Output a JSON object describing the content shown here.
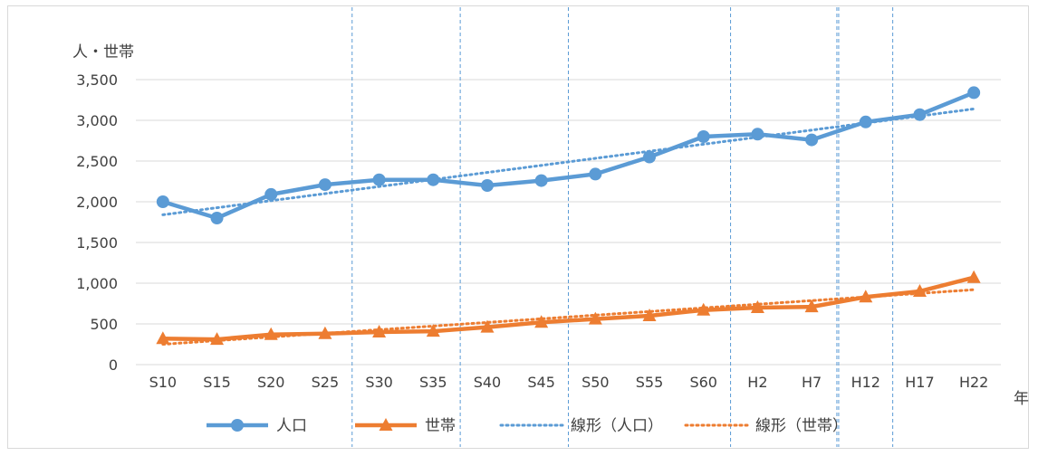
{
  "chart_data": {
    "type": "line",
    "y_axis_title": "人・世帯",
    "x_axis_title": "年",
    "categories": [
      "S10",
      "S15",
      "S20",
      "S25",
      "S30",
      "S35",
      "S40",
      "S45",
      "S50",
      "S55",
      "S60",
      "H2",
      "H7",
      "H12",
      "H17",
      "H22"
    ],
    "ylim": [
      0,
      3500
    ],
    "y_ticks": [
      0,
      500,
      1000,
      1500,
      2000,
      2500,
      3000,
      3500
    ],
    "y_tick_labels": [
      "0",
      "500",
      "1,000",
      "1,500",
      "2,000",
      "2,500",
      "3,000",
      "3,500"
    ],
    "grid": "horizontal",
    "legend_position": "bottom",
    "series": [
      {
        "name": "人口",
        "color": "#5b9bd5",
        "marker": "circle",
        "values": [
          2000,
          1800,
          2090,
          2210,
          2270,
          2270,
          2200,
          2260,
          2340,
          2550,
          2800,
          2830,
          2760,
          2980,
          3070,
          3340
        ]
      },
      {
        "name": "世帯",
        "color": "#ed7d31",
        "marker": "triangle",
        "values": [
          320,
          310,
          370,
          380,
          400,
          410,
          460,
          520,
          560,
          600,
          670,
          700,
          710,
          830,
          900,
          1070
        ]
      }
    ],
    "trendlines": [
      {
        "name": "線形（人口）",
        "color": "#5b9bd5",
        "style": "dotted",
        "start": 1840,
        "end": 3140
      },
      {
        "name": "線形（世帯）",
        "color": "#ed7d31",
        "style": "dotted",
        "start": 250,
        "end": 920
      }
    ],
    "vertical_markers": {
      "color": "#5b9bd5",
      "style": "dashed",
      "after_categories": [
        "S25",
        "S35",
        "S45",
        "S60",
        "H7",
        "H12"
      ]
    }
  }
}
